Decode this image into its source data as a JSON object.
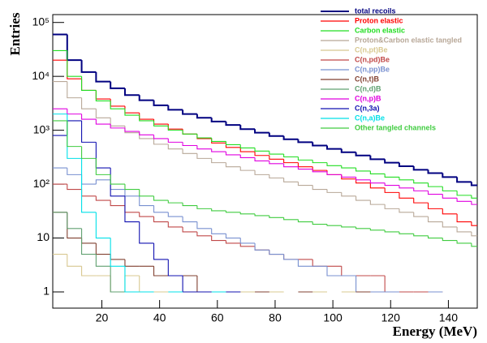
{
  "chart_data": {
    "type": "histogram",
    "xlabel": "Energy (MeV)",
    "ylabel": "Entries",
    "log_y": true,
    "legend": "upper right",
    "xlim": [
      3,
      150
    ],
    "ylim": [
      0.5,
      140000
    ],
    "xticks": [
      20,
      40,
      60,
      80,
      100,
      120,
      140
    ],
    "yticks": [
      1,
      10,
      {
        "value": 100,
        "label": "10²"
      },
      {
        "value": 1000,
        "label": "10³"
      },
      {
        "value": 10000,
        "label": "10⁴"
      },
      {
        "value": 100000,
        "label": "10⁵"
      }
    ],
    "bins": [
      3,
      8,
      13,
      18,
      23,
      28,
      33,
      38,
      43,
      48,
      53,
      58,
      63,
      68,
      73,
      78,
      83,
      88,
      93,
      98,
      103,
      108,
      113,
      118,
      123,
      128,
      133,
      138,
      143,
      148,
      150
    ],
    "series": [
      {
        "name": "total recoils",
        "color": "#000080",
        "values": [
          60000,
          20000,
          12000,
          8000,
          6000,
          4500,
          3600,
          2900,
          2400,
          2000,
          1700,
          1450,
          1250,
          1050,
          900,
          780,
          680,
          600,
          520,
          450,
          390,
          340,
          290,
          250,
          215,
          185,
          160,
          135,
          110,
          95
        ]
      },
      {
        "name": "Proton elastic",
        "color": "#ff0000",
        "values": [
          20000,
          9000,
          5500,
          3800,
          2800,
          2100,
          1600,
          1300,
          1050,
          850,
          700,
          580,
          480,
          400,
          340,
          290,
          250,
          210,
          180,
          150,
          125,
          105,
          85,
          70,
          55,
          45,
          35,
          28,
          20,
          17
        ]
      },
      {
        "name": "Carbon elastic",
        "color": "#22dd22",
        "values": [
          30000,
          10000,
          5500,
          3500,
          2500,
          1900,
          1500,
          1200,
          1000,
          850,
          720,
          620,
          540,
          470,
          410,
          360,
          320,
          280,
          250,
          220,
          200,
          175,
          155,
          135,
          120,
          105,
          90,
          75,
          62,
          55
        ]
      },
      {
        "name": "Proton&Carbon elastic tangled",
        "color": "#b8a898",
        "values": [
          8000,
          4000,
          2500,
          1700,
          1200,
          900,
          700,
          550,
          450,
          370,
          300,
          250,
          210,
          180,
          150,
          130,
          110,
          95,
          80,
          70,
          60,
          50,
          42,
          35,
          30,
          25,
          20,
          16,
          13,
          11
        ]
      },
      {
        "name": "C(n,pt)Be",
        "color": "#d8c890",
        "values": [
          5,
          3,
          2,
          2,
          1,
          2,
          1,
          1,
          1,
          null,
          1,
          1,
          null,
          1,
          null,
          1,
          null,
          null,
          1,
          null,
          1,
          null,
          null,
          1,
          null,
          null,
          1,
          null,
          null,
          null
        ]
      },
      {
        "name": "C(n,pd)Be",
        "color": "#c04848",
        "values": [
          100,
          80,
          60,
          50,
          40,
          30,
          25,
          20,
          16,
          13,
          11,
          9,
          8,
          7,
          6,
          5,
          4,
          4,
          3,
          3,
          2,
          2,
          2,
          1,
          1,
          1,
          1,
          null,
          null,
          null
        ]
      },
      {
        "name": "C(n,pp)Be",
        "color": "#7890d0",
        "values": [
          200,
          150,
          100,
          120,
          80,
          60,
          40,
          30,
          25,
          20,
          15,
          12,
          10,
          8,
          6,
          5,
          4,
          3,
          3,
          2,
          2,
          1,
          1,
          1,
          null,
          null,
          1,
          null,
          null,
          null
        ]
      },
      {
        "name": "C(n,t)B",
        "color": "#804030",
        "values": [
          30,
          10,
          8,
          5,
          4,
          3,
          3,
          2,
          2,
          2,
          1,
          1,
          1,
          null,
          1,
          null,
          null,
          1,
          null,
          null,
          null,
          1,
          null,
          null,
          null,
          null,
          null,
          null,
          null,
          null
        ]
      },
      {
        "name": "C(n,d)B",
        "color": "#60a070",
        "values": [
          30,
          15,
          5,
          3,
          1,
          null,
          null,
          null,
          null,
          null,
          null,
          null,
          null,
          null,
          null,
          null,
          null,
          null,
          null,
          null,
          null,
          null,
          null,
          null,
          null,
          null,
          null,
          null,
          null,
          null
        ]
      },
      {
        "name": "C(n,p)B",
        "color": "#e000e0",
        "values": [
          2500,
          2000,
          1600,
          1300,
          1100,
          950,
          820,
          700,
          600,
          520,
          450,
          400,
          350,
          310,
          270,
          240,
          210,
          190,
          170,
          150,
          135,
          120,
          105,
          95,
          85,
          75,
          65,
          55,
          48,
          42
        ]
      },
      {
        "name": "C(n,3a)",
        "color": "#1010b0",
        "values": [
          800,
          1500,
          600,
          200,
          60,
          20,
          8,
          4,
          2,
          1,
          1,
          null,
          1,
          null,
          null,
          null,
          null,
          null,
          null,
          null,
          null,
          null,
          null,
          null,
          null,
          null,
          null,
          null,
          null,
          null
        ]
      },
      {
        "name": "C(n,a)Be",
        "color": "#00e0e8",
        "values": [
          2000,
          300,
          30,
          10,
          3,
          1,
          1,
          null,
          1,
          null,
          null,
          1,
          null,
          null,
          null,
          null,
          null,
          null,
          null,
          null,
          null,
          null,
          null,
          null,
          null,
          null,
          null,
          null,
          null,
          null
        ]
      },
      {
        "name": "Other tangled channels",
        "color": "#40cc40",
        "values": [
          1500,
          500,
          300,
          150,
          100,
          80,
          60,
          50,
          45,
          40,
          35,
          32,
          30,
          28,
          26,
          24,
          22,
          20,
          18,
          17,
          16,
          15,
          14,
          13,
          12,
          11,
          10,
          9,
          8,
          7
        ]
      }
    ]
  }
}
